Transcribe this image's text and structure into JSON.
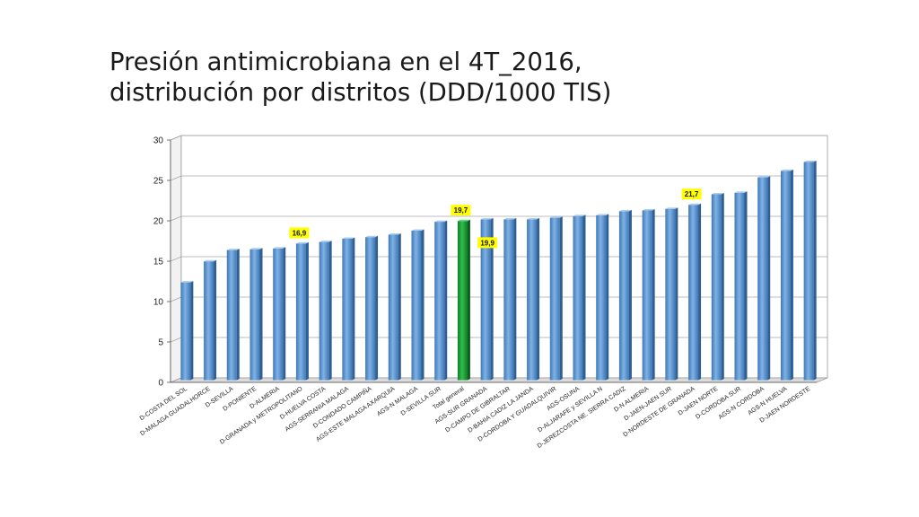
{
  "slide": {
    "title_line1": "Presión antimicrobiana en el 4T_2016,",
    "title_line2": "distribución por distritos (DDD/1000 TIS)"
  },
  "chart_data": {
    "type": "bar",
    "title": "Presión antimicrobiana en el 4T_2016, distribución por distritos (DDD/1000 TIS)",
    "xlabel": "",
    "ylabel": "",
    "ylim": [
      0,
      30
    ],
    "yticks": [
      0,
      5,
      10,
      15,
      20,
      25,
      30
    ],
    "grid": true,
    "categories": [
      "D-COSTA DEL SOL",
      "D-MALAGA GUADALHORCE",
      "D-SEVILLA",
      "D-PONIENTE",
      "D-ALMERIA",
      "D-GRANADA y METROPOLITANO",
      "D-HUELVA COSTA",
      "AGS-SERRANIA MALAGA",
      "D-CONDADO CAMPIÑA",
      "AGS-ESTE MALAGA AXARQUIA",
      "AGS-N MALAGA",
      "D-SEVILLA SUR",
      "Total general",
      "AGS-SUR GRANADA",
      "D-CAMPO DE GIBRALTAR",
      "D-BAHIA CADIZ LA JANDA",
      "D-CORDOBA Y GUADALQUIVIR",
      "AGS-OSUNA",
      "D-ALJARAFE y SEVILLA N",
      "D-JEREZCOSTA NE. SIERRA CADIZ",
      "D-N ALMERIA",
      "D-JAEN-JAEN SUR",
      "D-NORDESTE DE GRANADA",
      "D-JAEN NORTE",
      "D-CORDOBA SUR",
      "AGS-N CORDOBA",
      "AGS-N HUELVA",
      "D-JAEN NORDESTE"
    ],
    "values": [
      12.1,
      14.7,
      16.1,
      16.2,
      16.3,
      16.9,
      17.1,
      17.5,
      17.7,
      18.0,
      18.5,
      19.6,
      19.7,
      19.9,
      19.9,
      19.9,
      20.1,
      20.3,
      20.4,
      20.9,
      21.0,
      21.2,
      21.7,
      23.0,
      23.2,
      25.1,
      25.9,
      27.0
    ],
    "highlight_index": 12,
    "bar_color": "#5b9bd5",
    "highlight_color": "#1fa53a",
    "label_background": "#ffff00",
    "data_labels": [
      {
        "index": 5,
        "text": "16,9"
      },
      {
        "index": 12,
        "text": "19,7"
      },
      {
        "index": 13,
        "text": "19,9"
      },
      {
        "index": 22,
        "text": "21,7"
      }
    ]
  }
}
